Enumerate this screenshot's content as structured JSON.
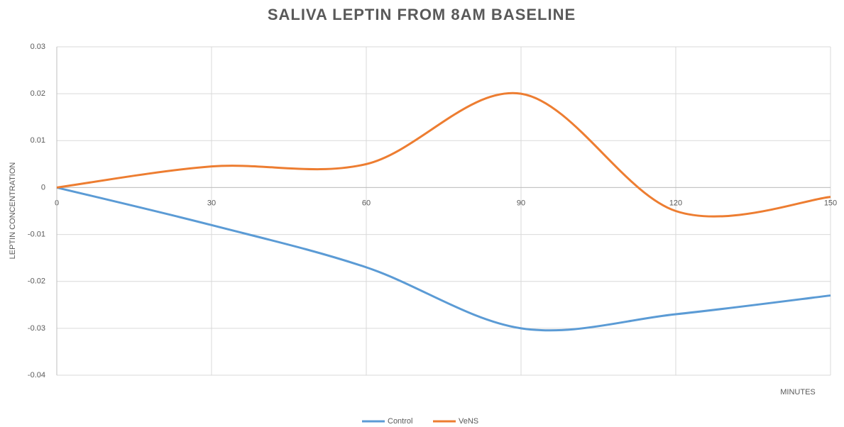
{
  "chart_data": {
    "type": "line",
    "title": "SALIVA LEPTIN FROM 8AM BASELINE",
    "x_label": "MINUTES",
    "y_label": "LEPTIN CONCENTRATION",
    "x": [
      0,
      30,
      60,
      90,
      120,
      150
    ],
    "series": [
      {
        "name": "Control",
        "color": "#5b9bd5",
        "values": [
          0,
          -0.008,
          -0.017,
          -0.03,
          -0.027,
          -0.023
        ]
      },
      {
        "name": "VeNS",
        "color": "#ed7d31",
        "values": [
          0,
          0.0045,
          0.005,
          0.02,
          -0.005,
          -0.002
        ]
      }
    ],
    "xlim": [
      0,
      150
    ],
    "xticks": [
      0,
      30,
      60,
      90,
      120,
      150
    ],
    "ylim": [
      -0.04,
      0.03
    ],
    "yticks": [
      -0.04,
      -0.03,
      -0.02,
      -0.01,
      0,
      0.01,
      0.02,
      0.03
    ],
    "grid": true,
    "smooth": true,
    "legend": "bottom"
  }
}
